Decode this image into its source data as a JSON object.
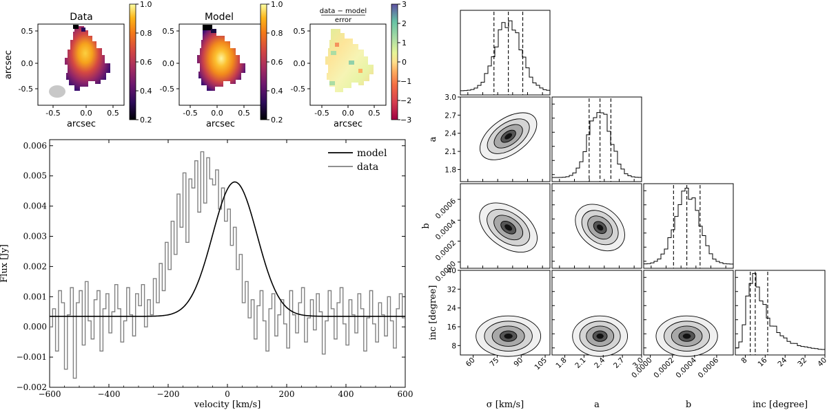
{
  "chart_data": [
    {
      "type": "heatmap",
      "panel": "data-map",
      "title": "Data",
      "xlabel": "arcsec",
      "ylabel": "arcsec",
      "xticks": [
        "-0.5",
        "0.0",
        "0.5"
      ],
      "yticks": [
        "0.5",
        "0.0",
        "-0.5"
      ],
      "colorbar_ticks": [
        "1.0",
        "0.8",
        "0.6",
        "0.4",
        "0.2"
      ],
      "colorbar_range": [
        0.2,
        1.0
      ]
    },
    {
      "type": "heatmap",
      "panel": "model-map",
      "title": "Model",
      "xlabel": "arcsec",
      "xticks": [
        "-0.5",
        "0.0",
        "0.5"
      ],
      "yticks": [
        "0.5",
        "0.0",
        "-0.5"
      ],
      "colorbar_ticks": [
        "1.0",
        "0.8",
        "0.6",
        "0.4",
        "0.2"
      ],
      "colorbar_range": [
        0.2,
        1.0
      ]
    },
    {
      "type": "heatmap",
      "panel": "residual-map",
      "title_num": "data − model",
      "title_den": "error",
      "xlabel": "arcsec",
      "xticks": [
        "-0.5",
        "0.0",
        "0.5"
      ],
      "yticks": [
        "0.5",
        "0.0",
        "-0.5"
      ],
      "colorbar_ticks": [
        "3",
        "2",
        "1",
        "0",
        "−1",
        "−2",
        "−3"
      ],
      "colorbar_range": [
        -3,
        3
      ]
    },
    {
      "type": "line",
      "panel": "spectrum",
      "xlabel": "velocity [km/s]",
      "ylabel": "Flux [Jy]",
      "xlim": [
        -600,
        600
      ],
      "ylim": [
        -0.002,
        0.0062
      ],
      "xticks": [
        "−600",
        "−400",
        "−200",
        "0",
        "200",
        "400",
        "600"
      ],
      "yticks": [
        "0.006",
        "0.005",
        "0.004",
        "0.003",
        "0.002",
        "0.001",
        "0.000",
        "−0.001",
        "−0.002"
      ],
      "legend": [
        "model",
        "data"
      ],
      "legend_position": "top-right",
      "series": [
        {
          "name": "model",
          "amplitude": 0.00445,
          "center": 25,
          "sigma": 75,
          "offset": 0.00035
        },
        {
          "name": "data",
          "step": true,
          "x_start": -595,
          "x_step": 10,
          "values": [
            0.0,
            0.0006,
            -0.0008,
            0.0012,
            0.0008,
            -0.0014,
            0.0004,
            0.0013,
            -0.0017,
            0.0008,
            0.0012,
            -0.0006,
            0.0015,
            0.0002,
            -0.0004,
            0.0009,
            0.0012,
            -0.0008,
            0.0006,
            0.0011,
            -0.0002,
            0.0005,
            0.0014,
            0.0006,
            -0.0005,
            0.0002,
            0.0013,
            0.0004,
            -0.0003,
            0.0011,
            0.0007,
            0.0014,
            0.0,
            0.0009,
            0.0004,
            0.0016,
            0.0008,
            0.0021,
            0.0012,
            0.0028,
            0.0019,
            0.0035,
            0.0024,
            0.0044,
            0.0033,
            0.0051,
            0.0028,
            0.0049,
            0.0046,
            0.0055,
            0.0038,
            0.0058,
            0.0041,
            0.0056,
            0.0049,
            0.0047,
            0.0052,
            0.0039,
            0.0046,
            0.0035,
            0.0039,
            0.0027,
            0.0033,
            0.0019,
            0.0024,
            0.0008,
            0.0015,
            0.0003,
            0.0009,
            -0.0004,
            0.0007,
            0.0012,
            0.0002,
            -0.0008,
            0.0006,
            0.0011,
            -0.0003,
            0.0004,
            0.0009,
            0.0001,
            -0.0007,
            0.0012,
            0.0004,
            -0.0002,
            0.0008,
            0.0013,
            -0.0005,
            0.0003,
            0.0009,
            -0.0001,
            0.0011,
            0.0005,
            -0.0009,
            0.0002,
            0.0012,
            0.0006,
            -0.0004,
            0.0008,
            0.0013,
            0.0001,
            -0.0006,
            0.0009,
            0.0004,
            -0.0002,
            0.0011,
            0.0006,
            -0.0008,
            0.0003,
            0.0012,
            0.0001,
            -0.0005,
            0.0008,
            0.0004,
            -0.0003,
            0.001,
            0.0002,
            -0.0007,
            0.0006,
            0.0011,
            0.0003
          ]
        }
      ]
    },
    {
      "type": "corner",
      "panel": "corner-plot",
      "parameters": [
        {
          "label": "σ [km/s]",
          "mean": 82,
          "sd": 8,
          "range": [
            52,
            108
          ],
          "ticks": [
            "60",
            "75",
            "90",
            "105"
          ],
          "quantiles": [
            73,
            82,
            91
          ]
        },
        {
          "label": "a",
          "mean": 2.35,
          "sd": 0.17,
          "range": [
            1.6,
            3.0
          ],
          "ticks": [
            "1.8",
            "2.1",
            "2.4",
            "2.7",
            "3.0"
          ],
          "yticks": [
            "3.0",
            "2.7",
            "2.4",
            "2.1",
            "1.8"
          ],
          "quantiles": [
            2.18,
            2.35,
            2.52
          ]
        },
        {
          "label": "b",
          "mean": 0.00033,
          "sd": 0.00011,
          "range": [
            -6e-05,
            0.00075
          ],
          "ticks": [
            "0.0000",
            "0.0002",
            "0.0004",
            "0.0006"
          ],
          "yticks": [
            "0.0006",
            "0.0004",
            "0.0002",
            "0.0000"
          ],
          "quantiles": [
            0.00021,
            0.00033,
            0.00045
          ]
        },
        {
          "label": "inc [degree]",
          "mean": 12,
          "sd": 5,
          "range": [
            4,
            40
          ],
          "ticks": [
            "8",
            "16",
            "24",
            "32",
            "40"
          ],
          "yticks": [
            "40",
            "32",
            "24",
            "16",
            "8"
          ],
          "quantiles": [
            10,
            12,
            17
          ]
        }
      ]
    }
  ]
}
